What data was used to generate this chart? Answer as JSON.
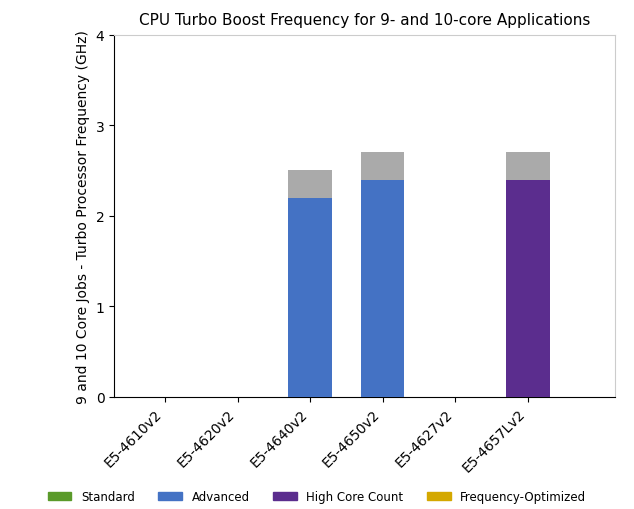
{
  "title": "CPU Turbo Boost Frequency for 9- and 10-core Applications",
  "ylabel": "9 and 10 Core Jobs - Turbo Processor Frequency (GHz)",
  "categories": [
    "E5-4610v2",
    "E5-4620v2",
    "E5-4640v2",
    "E5-4650v2",
    "E5-4627v2",
    "E5-4657Lv2"
  ],
  "x_positions": [
    1,
    2,
    3,
    4,
    5,
    6
  ],
  "xlim": [
    0.3,
    7.2
  ],
  "ylim": [
    0,
    4
  ],
  "yticks": [
    0,
    1,
    2,
    3,
    4
  ],
  "bar_width": 0.6,
  "advanced_vals": [
    0,
    0,
    2.2,
    2.4,
    0,
    0
  ],
  "high_core_count_vals": [
    0,
    0,
    0,
    0,
    0,
    2.4
  ],
  "gray_vals": [
    0,
    0,
    0.3,
    0.3,
    0,
    0.3
  ],
  "advanced_color": "#4472c4",
  "high_core_count_color": "#5b2d8e",
  "gray_color": "#aaaaaa",
  "standard_color": "#5a9a2a",
  "freq_opt_color": "#d4a800",
  "legend_labels": [
    "Standard",
    "Advanced",
    "High Core Count",
    "Frequency-Optimized"
  ],
  "legend_colors": [
    "#5a9a2a",
    "#4472c4",
    "#5b2d8e",
    "#d4a800"
  ],
  "background_color": "#ffffff",
  "title_fontsize": 11,
  "axis_label_fontsize": 10,
  "tick_fontsize": 10
}
